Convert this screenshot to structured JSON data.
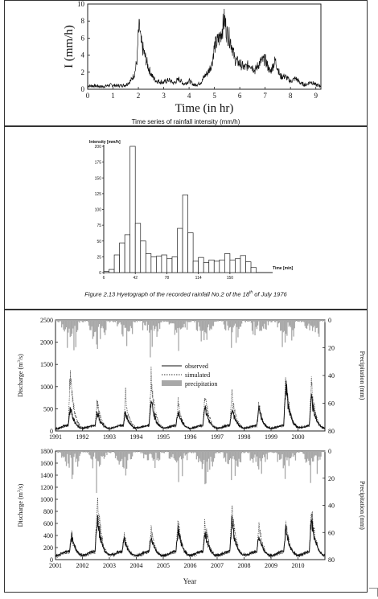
{
  "panel1": {
    "chart_data": {
      "type": "line",
      "title": "Time series of rainfall intensity (mm/h)",
      "xlabel": "Time (in hr)",
      "ylabel": "I (mm/h)",
      "xlim": [
        0,
        9.2
      ],
      "ylim": [
        0,
        10
      ],
      "xticks": [
        "0",
        "1",
        "2",
        "3",
        "4",
        "5",
        "6",
        "7",
        "8",
        "9"
      ],
      "yticks": [
        "0",
        "2",
        "4",
        "6",
        "8",
        "10"
      ],
      "series": [
        {
          "x": [
            0,
            0.3,
            0.6,
            0.9,
            1.2,
            1.5,
            1.7,
            1.85,
            1.95,
            2.0,
            2.05,
            2.1,
            2.2,
            2.3,
            2.4,
            2.55,
            2.7,
            2.85,
            3.0,
            3.2,
            3.4,
            3.6,
            3.8,
            4.0,
            4.2,
            4.35,
            4.5,
            4.6,
            4.75,
            4.9,
            5.0,
            5.1,
            5.2,
            5.3,
            5.4,
            5.5,
            5.6,
            5.7,
            5.8,
            6.0,
            6.2,
            6.4,
            6.6,
            6.8,
            7.0,
            7.2,
            7.4,
            7.6,
            7.8,
            8.0,
            8.2,
            8.4,
            8.6,
            8.8,
            9.0,
            9.2
          ],
          "y": [
            0.4,
            0.4,
            0.3,
            0.5,
            0.4,
            0.5,
            1.0,
            1.8,
            3.5,
            6.5,
            7.3,
            5.5,
            4.5,
            3.5,
            2.5,
            1.5,
            1.0,
            0.9,
            0.8,
            1.1,
            0.7,
            1.2,
            0.6,
            1.0,
            0.5,
            0.6,
            0.9,
            1.5,
            2.0,
            3.0,
            5.0,
            5.5,
            6.0,
            7.0,
            8.2,
            6.5,
            6.0,
            5.0,
            3.5,
            3.0,
            2.5,
            3.0,
            2.2,
            3.2,
            3.5,
            2.0,
            3.4,
            1.5,
            1.5,
            0.9,
            1.3,
            0.7,
            0.5,
            0.9,
            0.5,
            0.4
          ]
        }
      ]
    }
  },
  "panel2": {
    "chart_data": {
      "type": "bar",
      "title": "Figure 2.13 Hyetograph of the recorded rainfall No.2 of the 18th of July 1976",
      "caption_prefix": "Figure 2.13 Hyetograph of the recorded rainfall No.2 of the 18",
      "caption_sup": "th",
      "caption_suffix": " of July 1976",
      "ylabel": "Intensity [mm/h]",
      "xlabel": "Time [min]",
      "xlim": [
        6,
        196
      ],
      "ylim": [
        0,
        200
      ],
      "bin_width": 6,
      "yticks": [
        "0",
        "25",
        "50",
        "75",
        "100",
        "125",
        "150",
        "175",
        "200"
      ],
      "xticks": [
        {
          "v": 6,
          "label": "6"
        },
        {
          "v": 42,
          "label": "42"
        },
        {
          "v": 78,
          "label": "78"
        },
        {
          "v": 114,
          "label": "114"
        },
        {
          "v": 150,
          "label": "150"
        }
      ],
      "values": [
        2,
        5,
        28,
        47,
        60,
        200,
        78,
        50,
        30,
        25,
        26,
        28,
        22,
        25,
        70,
        123,
        63,
        18,
        24,
        16,
        20,
        18,
        20,
        30,
        20,
        22,
        27,
        17,
        8
      ]
    }
  },
  "panel3": {
    "legend": {
      "observed": "observed",
      "simulated": "simulated",
      "precipitation": "precipitation"
    },
    "xlabel": "Year",
    "charts": [
      {
        "type": "line",
        "ylabel_prefix": "Discharge (m",
        "ylabel_sup": "3",
        "ylabel_suffix": "/s)",
        "ylabel_right": "Precipitation (mm)",
        "xlim": [
          1991,
          2001
        ],
        "ylim": [
          0,
          2500
        ],
        "ylim_right": [
          0,
          80
        ],
        "right_axis_inverted": true,
        "xticks": [
          "1991",
          "1992",
          "1993",
          "1994",
          "1995",
          "1996",
          "1997",
          "1998",
          "1999",
          "2000"
        ],
        "yticks": [
          "0",
          "500",
          "1000",
          "1500",
          "2000",
          "2500"
        ],
        "yticks_right": [
          "0",
          "20",
          "40",
          "60",
          "80"
        ],
        "peaks": [
          {
            "x": 1991.55,
            "obs": 420,
            "sim": 1180,
            "prec": 30
          },
          {
            "x": 1992.55,
            "obs": 320,
            "sim": 600,
            "prec": 18
          },
          {
            "x": 1993.6,
            "obs": 330,
            "sim": 760,
            "prec": 20
          },
          {
            "x": 1994.55,
            "obs": 600,
            "sim": 1150,
            "prec": 28
          },
          {
            "x": 1995.55,
            "obs": 360,
            "sim": 560,
            "prec": 19
          },
          {
            "x": 1996.55,
            "obs": 460,
            "sim": 820,
            "prec": 22
          },
          {
            "x": 1997.55,
            "obs": 430,
            "sim": 760,
            "prec": 20
          },
          {
            "x": 1998.55,
            "obs": 380,
            "sim": 540,
            "prec": 18
          },
          {
            "x": 1999.55,
            "obs": 1000,
            "sim": 1200,
            "prec": 32
          },
          {
            "x": 2000.5,
            "obs": 650,
            "sim": 1000,
            "prec": 28
          }
        ],
        "baseflow_obs": 60,
        "baseflow_sim": 40
      },
      {
        "type": "line",
        "ylabel_prefix": "Discharge (m",
        "ylabel_sup": "3",
        "ylabel_suffix": "/s)",
        "ylabel_right": "Precipitation (mm)",
        "xlim": [
          2001,
          2011
        ],
        "ylim": [
          0,
          1800
        ],
        "ylim_right": [
          0,
          80
        ],
        "right_axis_inverted": true,
        "xticks": [
          "2001",
          "2002",
          "2003",
          "2004",
          "2005",
          "2006",
          "2007",
          "2008",
          "2009",
          "2010"
        ],
        "yticks": [
          "0",
          "200",
          "400",
          "600",
          "800",
          "1000",
          "1200",
          "1400",
          "1600",
          "1800"
        ],
        "yticks_right": [
          "0",
          "20",
          "40",
          "60",
          "80"
        ],
        "peaks": [
          {
            "x": 2001.6,
            "obs": 300,
            "sim": 330,
            "prec": 18
          },
          {
            "x": 2002.55,
            "obs": 620,
            "sim": 1030,
            "prec": 32
          },
          {
            "x": 2003.55,
            "obs": 220,
            "sim": 320,
            "prec": 14
          },
          {
            "x": 2004.55,
            "obs": 250,
            "sim": 420,
            "prec": 16
          },
          {
            "x": 2005.55,
            "obs": 400,
            "sim": 560,
            "prec": 20
          },
          {
            "x": 2006.55,
            "obs": 330,
            "sim": 560,
            "prec": 20
          },
          {
            "x": 2007.55,
            "obs": 520,
            "sim": 770,
            "prec": 26
          },
          {
            "x": 2008.55,
            "obs": 300,
            "sim": 500,
            "prec": 18
          },
          {
            "x": 2009.55,
            "obs": 410,
            "sim": 520,
            "prec": 20
          },
          {
            "x": 2010.5,
            "obs": 620,
            "sim": 780,
            "prec": 26
          }
        ],
        "baseflow_obs": 70,
        "baseflow_sim": 50
      }
    ]
  }
}
